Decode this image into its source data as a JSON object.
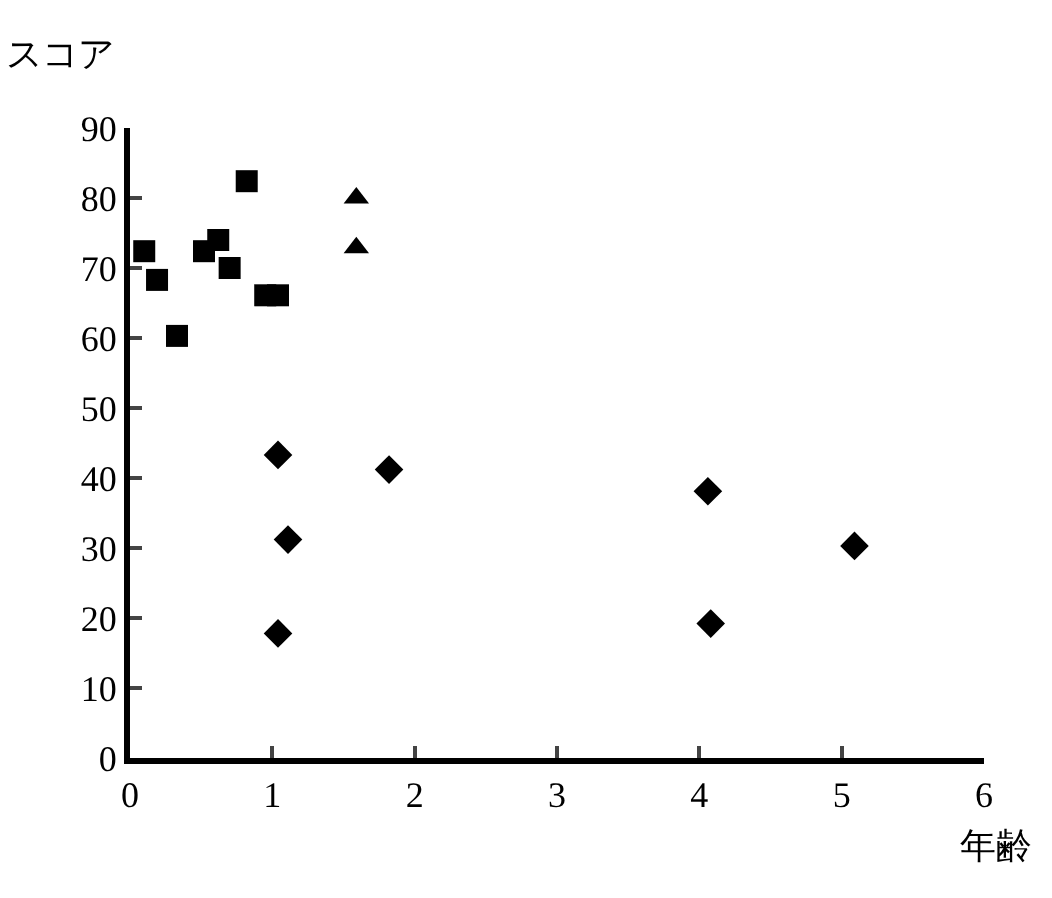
{
  "chart_data": {
    "type": "scatter",
    "xlabel": "年齢",
    "ylabel": "スコア",
    "xlim": [
      0,
      6
    ],
    "xticks": [
      0,
      1,
      2,
      3,
      4,
      5,
      6
    ],
    "ylim": [
      0,
      90
    ],
    "yticks": [
      0,
      10,
      20,
      30,
      40,
      50,
      60,
      70,
      80,
      90
    ],
    "series": [
      {
        "color": "#000000",
        "marker": "square",
        "x": [
          0.1,
          0.19,
          0.33,
          0.52,
          0.62,
          0.7,
          0.82,
          0.95,
          1.04
        ],
        "values": [
          72.4,
          68.3,
          60.3,
          72.4,
          74,
          70,
          82.4,
          66.1,
          66.1
        ]
      },
      {
        "color": "#000000",
        "marker": "triangle",
        "x": [
          1.59,
          1.59
        ],
        "values": [
          80,
          72.9
        ]
      },
      {
        "color": "#000000",
        "marker": "diamond",
        "x": [
          1.04,
          1.82,
          4.06,
          1.11,
          5.09,
          1.04,
          4.08
        ],
        "values": [
          43.3,
          41.2,
          38.1,
          31.2,
          30.3,
          17.8,
          19.2
        ]
      }
    ]
  }
}
